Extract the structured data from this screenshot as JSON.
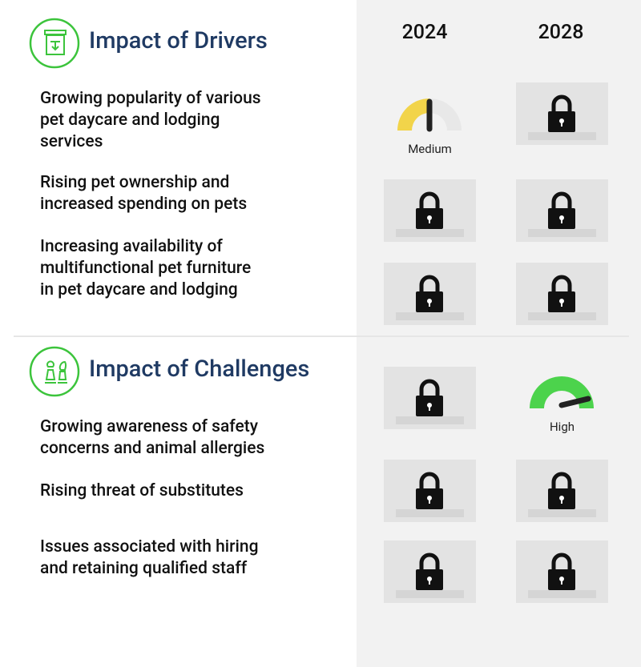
{
  "columns": [
    "2024",
    "2028"
  ],
  "sections": [
    {
      "title": "Impact of Drivers",
      "icon": "drivers",
      "items": [
        {
          "label": [
            "Growing popularity of various",
            "pet daycare and lodging",
            "services"
          ],
          "cells": [
            {
              "type": "gauge",
              "label": "Medium",
              "color": "#f2d44a"
            },
            {
              "type": "locked"
            }
          ]
        },
        {
          "label": [
            "Rising pet ownership and",
            "increased spending on pets"
          ],
          "cells": [
            {
              "type": "locked"
            },
            {
              "type": "locked"
            }
          ]
        },
        {
          "label": [
            "Increasing availability of",
            "multifunctional pet furniture",
            "in pet daycare and lodging"
          ],
          "cells": [
            {
              "type": "locked"
            },
            {
              "type": "locked"
            }
          ]
        }
      ]
    },
    {
      "title": "Impact of Challenges",
      "icon": "challenges",
      "items": [
        {
          "label": [
            "Growing awareness of safety",
            "concerns and animal allergies"
          ],
          "cells": [
            {
              "type": "locked"
            },
            {
              "type": "gauge",
              "label": "High",
              "color": "#4cd34c"
            }
          ]
        },
        {
          "label": [
            "Rising threat of substitutes"
          ],
          "cells": [
            {
              "type": "locked"
            },
            {
              "type": "locked"
            }
          ]
        },
        {
          "label": [
            "Issues associated with hiring",
            "and retaining qualified staff"
          ],
          "cells": [
            {
              "type": "locked"
            },
            {
              "type": "locked"
            }
          ]
        }
      ]
    }
  ]
}
